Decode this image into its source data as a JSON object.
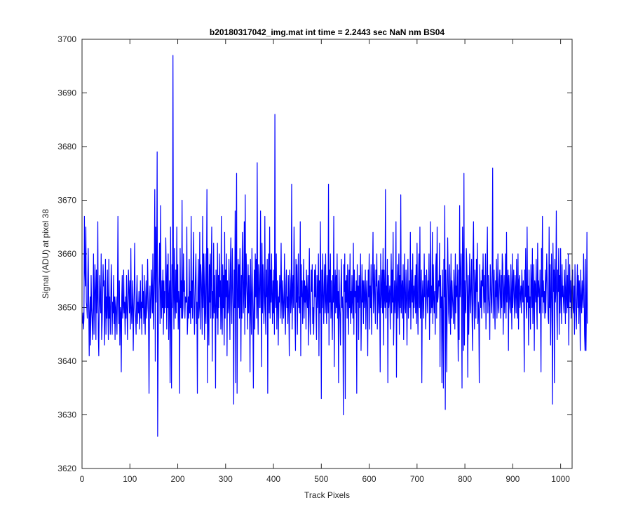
{
  "chart_data": {
    "type": "line",
    "title": "b20180317042_img.mat int time = 2.2443 sec  NaN nm BS04",
    "xlabel": "Track Pixels",
    "ylabel": "Signal (ADU) at pixel 38",
    "xlim": [
      0,
      1024
    ],
    "ylim": [
      3620,
      3700
    ],
    "xticks": [
      0,
      100,
      200,
      300,
      400,
      500,
      600,
      700,
      800,
      900,
      1000
    ],
    "yticks": [
      3620,
      3630,
      3640,
      3650,
      3660,
      3670,
      3680,
      3690,
      3700
    ],
    "grid": false,
    "legend": "none",
    "series": [
      {
        "color": "#0000ff",
        "x_start": 1,
        "x_step": 1,
        "values": [
          3647,
          3649,
          3646,
          3648,
          3667,
          3657,
          3654,
          3665,
          3651,
          3650,
          3648,
          3655,
          3661,
          3650,
          3641,
          3649,
          3652,
          3643,
          3656,
          3650,
          3648,
          3644,
          3650,
          3660,
          3645,
          3651,
          3658,
          3653,
          3644,
          3657,
          3649,
          3652,
          3666,
          3645,
          3641,
          3650,
          3656,
          3651,
          3649,
          3660,
          3644,
          3647,
          3652,
          3658,
          3654,
          3655,
          3643,
          3650,
          3659,
          3645,
          3652,
          3648,
          3657,
          3650,
          3644,
          3659,
          3648,
          3652,
          3645,
          3650,
          3658,
          3654,
          3645,
          3651,
          3649,
          3656,
          3647,
          3652,
          3644,
          3650,
          3652,
          3648,
          3645,
          3653,
          3667,
          3651,
          3647,
          3655,
          3643,
          3650,
          3649,
          3638,
          3652,
          3656,
          3648,
          3650,
          3657,
          3649,
          3651,
          3645,
          3652,
          3648,
          3656,
          3650,
          3644,
          3651,
          3657,
          3653,
          3649,
          3655,
          3646,
          3661,
          3650,
          3647,
          3651,
          3655,
          3642,
          3649,
          3653,
          3662,
          3650,
          3648,
          3645,
          3652,
          3656,
          3647,
          3651,
          3649,
          3653,
          3646,
          3650,
          3655,
          3648,
          3651,
          3645,
          3658,
          3650,
          3653,
          3647,
          3656,
          3649,
          3645,
          3652,
          3655,
          3648,
          3650,
          3659,
          3653,
          3646,
          3634,
          3651,
          3654,
          3648,
          3650,
          3657,
          3653,
          3649,
          3660,
          3646,
          3651,
          3657,
          3672,
          3640,
          3665,
          3651,
          3660,
          3679,
          3626,
          3641,
          3652,
          3656,
          3662,
          3647,
          3669,
          3652,
          3648,
          3655,
          3650,
          3657,
          3645,
          3655,
          3649,
          3653,
          3650,
          3663,
          3656,
          3646,
          3658,
          3650,
          3660,
          3644,
          3652,
          3655,
          3636,
          3665,
          3649,
          3635,
          3658,
          3650,
          3697,
          3655,
          3646,
          3661,
          3652,
          3648,
          3657,
          3649,
          3665,
          3651,
          3658,
          3646,
          3653,
          3651,
          3634,
          3661,
          3650,
          3655,
          3648,
          3670,
          3648,
          3650,
          3660,
          3653,
          3655,
          3648,
          3652,
          3651,
          3651,
          3665,
          3645,
          3648,
          3652,
          3648,
          3659,
          3649,
          3653,
          3647,
          3667,
          3650,
          3655,
          3648,
          3657,
          3664,
          3650,
          3645,
          3652,
          3656,
          3660,
          3647,
          3651,
          3634,
          3653,
          3659,
          3648,
          3650,
          3664,
          3646,
          3658,
          3656,
          3652,
          3645,
          3667,
          3650,
          3660,
          3653,
          3644,
          3660,
          3649,
          3647,
          3657,
          3672,
          3636,
          3661,
          3650,
          3643,
          3658,
          3651,
          3660,
          3648,
          3657,
          3665,
          3640,
          3653,
          3648,
          3662,
          3649,
          3656,
          3650,
          3635,
          3657,
          3652,
          3648,
          3662,
          3645,
          3656,
          3650,
          3660,
          3652,
          3655,
          3646,
          3667,
          3649,
          3645,
          3658,
          3650,
          3656,
          3643,
          3664,
          3648,
          3657,
          3652,
          3660,
          3641,
          3655,
          3649,
          3650,
          3659,
          3652,
          3644,
          3658,
          3663,
          3651,
          3647,
          3661,
          3655,
          3649,
          3632,
          3657,
          3650,
          3668,
          3636,
          3661,
          3675,
          3634,
          3651,
          3659,
          3650,
          3658,
          3648,
          3661,
          3653,
          3640,
          3656,
          3648,
          3664,
          3658,
          3649,
          3653,
          3666,
          3645,
          3671,
          3650,
          3660,
          3655,
          3652,
          3646,
          3658,
          3649,
          3656,
          3652,
          3638,
          3659,
          3650,
          3645,
          3661,
          3654,
          3649,
          3635,
          3651,
          3657,
          3646,
          3660,
          3652,
          3659,
          3648,
          3677,
          3651,
          3645,
          3658,
          3656,
          3650,
          3650,
          3668,
          3654,
          3639,
          3662,
          3649,
          3658,
          3655,
          3647,
          3651,
          3667,
          3650,
          3645,
          3657,
          3652,
          3659,
          3634,
          3654,
          3660,
          3649,
          3665,
          3648,
          3657,
          3651,
          3660,
          3652,
          3647,
          3655,
          3649,
          3657,
          3645,
          3686,
          3652,
          3650,
          3660,
          3646,
          3655,
          3652,
          3643,
          3652,
          3651,
          3656,
          3648,
          3654,
          3662,
          3651,
          3647,
          3655,
          3652,
          3648,
          3651,
          3660,
          3649,
          3645,
          3654,
          3657,
          3650,
          3652,
          3647,
          3656,
          3651,
          3641,
          3657,
          3655,
          3649,
          3651,
          3673,
          3646,
          3653,
          3656,
          3650,
          3665,
          3654,
          3648,
          3642,
          3659,
          3651,
          3658,
          3645,
          3653,
          3660,
          3650,
          3652,
          3649,
          3666,
          3641,
          3658,
          3652,
          3655,
          3647,
          3652,
          3659,
          3648,
          3655,
          3651,
          3654,
          3646,
          3657,
          3652,
          3650,
          3656,
          3643,
          3652,
          3661,
          3649,
          3645,
          3652,
          3657,
          3653,
          3658,
          3647,
          3650,
          3645,
          3651,
          3657,
          3652,
          3658,
          3649,
          3644,
          3656,
          3650,
          3653,
          3660,
          3641,
          3655,
          3649,
          3666,
          3653,
          3633,
          3657,
          3650,
          3660,
          3652,
          3647,
          3654,
          3658,
          3649,
          3660,
          3651,
          3647,
          3656,
          3652,
          3649,
          3673,
          3643,
          3657,
          3651,
          3660,
          3648,
          3655,
          3650,
          3644,
          3656,
          3651,
          3667,
          3639,
          3653,
          3657,
          3649,
          3656,
          3650,
          3660,
          3648,
          3653,
          3636,
          3657,
          3651,
          3648,
          3643,
          3654,
          3659,
          3650,
          3652,
          3649,
          3630,
          3658,
          3653,
          3660,
          3633,
          3655,
          3651,
          3656,
          3648,
          3658,
          3652,
          3645,
          3657,
          3650,
          3660,
          3647,
          3653,
          3649,
          3656,
          3651,
          3648,
          3662,
          3645,
          3657,
          3652,
          3653,
          3649,
          3655,
          3634,
          3658,
          3651,
          3654,
          3644,
          3656,
          3650,
          3653,
          3660,
          3642,
          3649,
          3658,
          3651,
          3655,
          3647,
          3655,
          3650,
          3652,
          3657,
          3646,
          3652,
          3655,
          3649,
          3641,
          3657,
          3652,
          3660,
          3646,
          3654,
          3650,
          3658,
          3645,
          3652,
          3656,
          3664,
          3649,
          3653,
          3658,
          3651,
          3647,
          3657,
          3654,
          3660,
          3646,
          3652,
          3655,
          3649,
          3656,
          3651,
          3638,
          3660,
          3650,
          3653,
          3657,
          3649,
          3661,
          3643,
          3657,
          3652,
          3650,
          3672,
          3648,
          3654,
          3651,
          3659,
          3636,
          3656,
          3650,
          3652,
          3654,
          3646,
          3653,
          3660,
          3649,
          3657,
          3651,
          3664,
          3643,
          3650,
          3655,
          3649,
          3652,
          3666,
          3637,
          3653,
          3658,
          3648,
          3652,
          3660,
          3645,
          3656,
          3650,
          3671,
          3649,
          3653,
          3655,
          3648,
          3658,
          3644,
          3653,
          3660,
          3650,
          3649,
          3657,
          3652,
          3643,
          3654,
          3659,
          3648,
          3652,
          3655,
          3650,
          3664,
          3646,
          3653,
          3657,
          3651,
          3660,
          3648,
          3654,
          3650,
          3653,
          3656,
          3649,
          3658,
          3647,
          3662,
          3651,
          3645,
          3655,
          3660,
          3650,
          3665,
          3648,
          3653,
          3657,
          3636,
          3652,
          3655,
          3650,
          3648,
          3660,
          3652,
          3656,
          3646,
          3650,
          3657,
          3653,
          3649,
          3655,
          3652,
          3660,
          3644,
          3651,
          3666,
          3649,
          3654,
          3650,
          3664,
          3647,
          3658,
          3652,
          3649,
          3653,
          3645,
          3657,
          3660,
          3648,
          3665,
          3651,
          3652,
          3655,
          3654,
          3662,
          3639,
          3656,
          3650,
          3652,
          3636,
          3657,
          3648,
          3635,
          3659,
          3652,
          3669,
          3631,
          3657,
          3652,
          3638,
          3651,
          3663,
          3656,
          3649,
          3647,
          3658,
          3653,
          3645,
          3660,
          3648,
          3655,
          3652,
          3650,
          3647,
          3657,
          3653,
          3646,
          3660,
          3649,
          3654,
          3652,
          3658,
          3651,
          3640,
          3657,
          3644,
          3669,
          3652,
          3655,
          3660,
          3650,
          3635,
          3665,
          3658,
          3642,
          3675,
          3643,
          3655,
          3650,
          3649,
          3661,
          3658,
          3652,
          3637,
          3656,
          3645,
          3651,
          3660,
          3653,
          3649,
          3655,
          3659,
          3648,
          3642,
          3660,
          3666,
          3651,
          3646,
          3657,
          3654,
          3648,
          3659,
          3653,
          3662,
          3647,
          3651,
          3649,
          3636,
          3658,
          3653,
          3650,
          3655,
          3648,
          3657,
          3654,
          3660,
          3652,
          3649,
          3656,
          3651,
          3660,
          3646,
          3653,
          3658,
          3665,
          3649,
          3656,
          3652,
          3650,
          3644,
          3658,
          3655,
          3651,
          3649,
          3657,
          3676,
          3648,
          3653,
          3657,
          3650,
          3646,
          3655,
          3652,
          3659,
          3648,
          3653,
          3660,
          3650,
          3649,
          3655,
          3657,
          3652,
          3648,
          3656,
          3650,
          3660,
          3658,
          3645,
          3652,
          3656,
          3649,
          3653,
          3660,
          3648,
          3664,
          3651,
          3654,
          3657,
          3642,
          3656,
          3653,
          3650,
          3649,
          3658,
          3652,
          3646,
          3660,
          3650,
          3654,
          3657,
          3651,
          3648,
          3656,
          3653,
          3649,
          3659,
          3652,
          3648,
          3660,
          3646,
          3655,
          3656,
          3650,
          3652,
          3654,
          3649,
          3657,
          3653,
          3651,
          3655,
          3650,
          3638,
          3657,
          3652,
          3661,
          3650,
          3648,
          3665,
          3651,
          3654,
          3643,
          3657,
          3650,
          3652,
          3646,
          3658,
          3654,
          3650,
          3661,
          3647,
          3652,
          3658,
          3642,
          3655,
          3654,
          3651,
          3659,
          3650,
          3646,
          3662,
          3652,
          3655,
          3653,
          3649,
          3657,
          3650,
          3638,
          3661,
          3652,
          3667,
          3649,
          3655,
          3651,
          3653,
          3648,
          3657,
          3649,
          3654,
          3660,
          3655,
          3651,
          3648,
          3647,
          3665,
          3650,
          3658,
          3643,
          3652,
          3660,
          3649,
          3632,
          3662,
          3653,
          3657,
          3636,
          3659,
          3651,
          3653,
          3668,
          3650,
          3644,
          3657,
          3653,
          3661,
          3645,
          3656,
          3649,
          3661,
          3652,
          3647,
          3658,
          3652,
          3654,
          3651,
          3649,
          3657,
          3653,
          3647,
          3659,
          3652,
          3649,
          3656,
          3650,
          3660,
          3643,
          3653,
          3658,
          3651,
          3655,
          3648,
          3653,
          3656,
          3657,
          3650,
          3649,
          3654,
          3645,
          3658,
          3652,
          3649,
          3646,
          3653,
          3658,
          3650,
          3656,
          3647,
          3655,
          3652,
          3642,
          3657,
          3651,
          3649,
          3655,
          3652,
          3650,
          3660,
          3654,
          3645,
          3642,
          3659,
          3642,
          3650,
          3664,
          3647
        ]
      }
    ]
  }
}
